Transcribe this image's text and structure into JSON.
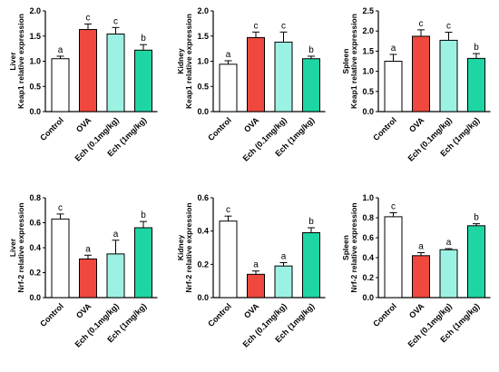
{
  "colors": {
    "Control": "#ffffff",
    "OVA": "#f0483e",
    "Ech (0.1mg/kg)": "#9cf2e2",
    "Ech (1mg/kg)": "#1ed6a3",
    "axis": "#000000"
  },
  "chart_data": [
    {
      "type": "bar",
      "ylabel_lines": [
        "Liver",
        "Keap1 relative expression"
      ],
      "categories": [
        "Control",
        "OVA",
        "Ech (0.1mg/kg)",
        "Ech (1mg/kg)"
      ],
      "values": [
        1.05,
        1.63,
        1.54,
        1.22
      ],
      "errors": [
        0.05,
        0.11,
        0.13,
        0.11
      ],
      "significance": [
        "a",
        "c",
        "c",
        "b"
      ],
      "ylim": [
        0,
        2.0
      ],
      "yticks": [
        0,
        0.5,
        1.0,
        1.5,
        2.0
      ],
      "tick_labels": [
        "0.0",
        "0.5",
        "1.0",
        "1.5",
        "2.0"
      ]
    },
    {
      "type": "bar",
      "ylabel_lines": [
        "Kidney",
        "Keap1 relative expression"
      ],
      "categories": [
        "Control",
        "OVA",
        "Ech (0.1mg/kg)",
        "Ech (1mg/kg)"
      ],
      "values": [
        0.94,
        1.47,
        1.38,
        1.05
      ],
      "errors": [
        0.07,
        0.11,
        0.2,
        0.05
      ],
      "significance": [
        "a",
        "c",
        "c",
        "b"
      ],
      "ylim": [
        0,
        2.0
      ],
      "yticks": [
        0,
        0.5,
        1.0,
        1.5,
        2.0
      ],
      "tick_labels": [
        "0.0",
        "0.5",
        "1.0",
        "1.5",
        "2.0"
      ]
    },
    {
      "type": "bar",
      "ylabel_lines": [
        "Spleen",
        "Keap1 relative expression"
      ],
      "categories": [
        "Control",
        "OVA",
        "Ech (0.1mg/kg)",
        "Ech (1mg/kg)"
      ],
      "values": [
        1.25,
        1.87,
        1.77,
        1.32
      ],
      "errors": [
        0.17,
        0.16,
        0.2,
        0.12
      ],
      "significance": [
        "a",
        "c",
        "c",
        "b"
      ],
      "ylim": [
        0,
        2.5
      ],
      "yticks": [
        0,
        0.5,
        1.0,
        1.5,
        2.0,
        2.5
      ],
      "tick_labels": [
        "0.0",
        "0.5",
        "1.0",
        "1.5",
        "2.0",
        "2.5"
      ]
    },
    {
      "type": "bar",
      "ylabel_lines": [
        "Liver",
        "Nrf-2 relative expression"
      ],
      "categories": [
        "Control",
        "OVA",
        "Ech (0.1mg/kg)",
        "Ech (1mg/kg)"
      ],
      "values": [
        0.63,
        0.31,
        0.35,
        0.56
      ],
      "errors": [
        0.04,
        0.03,
        0.11,
        0.05
      ],
      "significance": [
        "c",
        "a",
        "a",
        "b"
      ],
      "ylim": [
        0,
        0.8
      ],
      "yticks": [
        0,
        0.2,
        0.4,
        0.6,
        0.8
      ],
      "tick_labels": [
        "0.0",
        "0.2",
        "0.4",
        "0.6",
        "0.8"
      ]
    },
    {
      "type": "bar",
      "ylabel_lines": [
        "Kidney",
        "Nrf-2 relative expression"
      ],
      "categories": [
        "Control",
        "OVA",
        "Ech (0.1mg/kg)",
        "Ech (1mg/kg)"
      ],
      "values": [
        0.46,
        0.14,
        0.19,
        0.39
      ],
      "errors": [
        0.03,
        0.02,
        0.02,
        0.03
      ],
      "significance": [
        "c",
        "a",
        "a",
        "b"
      ],
      "ylim": [
        0,
        0.6
      ],
      "yticks": [
        0,
        0.2,
        0.4,
        0.6
      ],
      "tick_labels": [
        "0.0",
        "0.2",
        "0.4",
        "0.6"
      ]
    },
    {
      "type": "bar",
      "ylabel_lines": [
        "Spleen",
        "Nrf-2 relative expression"
      ],
      "categories": [
        "Control",
        "OVA",
        "Ech (0.1mg/kg)",
        "Ech (1mg/kg)"
      ],
      "values": [
        0.81,
        0.42,
        0.48,
        0.72
      ],
      "errors": [
        0.04,
        0.03,
        0.01,
        0.02
      ],
      "significance": [
        "c",
        "a",
        "a",
        "b"
      ],
      "ylim": [
        0,
        1.0
      ],
      "yticks": [
        0,
        0.2,
        0.4,
        0.6,
        0.8,
        1.0
      ],
      "tick_labels": [
        "0.0",
        "0.2",
        "0.4",
        "0.6",
        "0.8",
        "1.0"
      ]
    }
  ]
}
